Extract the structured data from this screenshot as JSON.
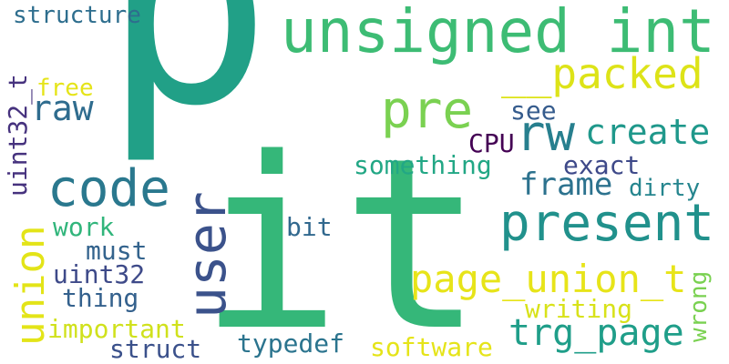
{
  "words": {
    "p": {
      "text": "p",
      "color": "#21a087"
    },
    "it": {
      "text": "it",
      "color": "#35b779"
    },
    "unsigned_int": {
      "text": "unsigned int",
      "color": "#3dbc74"
    },
    "packed": {
      "text": "__packed",
      "color": "#dde318"
    },
    "pre": {
      "text": "pre",
      "color": "#7ad151"
    },
    "rw": {
      "text": "rw",
      "color": "#277f8e"
    },
    "create": {
      "text": "create",
      "color": "#1f988b"
    },
    "code": {
      "text": "code",
      "color": "#2a788e"
    },
    "user": {
      "text": "user",
      "color": "#3b528b"
    },
    "present": {
      "text": "present",
      "color": "#21918c"
    },
    "union": {
      "text": "union",
      "color": "#e3e418"
    },
    "page_union_t": {
      "text": "page_union_t",
      "color": "#e7e419"
    },
    "trg_page": {
      "text": "trg_page",
      "color": "#1f9e89"
    },
    "frame": {
      "text": "frame",
      "color": "#2c728e"
    },
    "structure": {
      "text": "structure",
      "color": "#2e6e8e"
    },
    "uint32_t": {
      "text": "uint32_t",
      "color": "#46327e"
    },
    "free": {
      "text": "free",
      "color": "#e5e419"
    },
    "raw": {
      "text": "raw",
      "color": "#2f6c8e"
    },
    "see": {
      "text": "see",
      "color": "#365c8d"
    },
    "cpu": {
      "text": "CPU",
      "color": "#440154"
    },
    "something": {
      "text": "something",
      "color": "#22a785"
    },
    "exact": {
      "text": "exact",
      "color": "#3e4989"
    },
    "dirty": {
      "text": "dirty",
      "color": "#25858e"
    },
    "work": {
      "text": "work",
      "color": "#31b57b"
    },
    "must": {
      "text": "must",
      "color": "#33638d"
    },
    "bit": {
      "text": "bit",
      "color": "#31688e"
    },
    "uint32": {
      "text": "uint32",
      "color": "#3e4a89"
    },
    "thing": {
      "text": "thing",
      "color": "#34618d"
    },
    "wrong": {
      "text": "wrong",
      "color": "#7ad151"
    },
    "writing": {
      "text": "writing",
      "color": "#d8e219"
    },
    "important": {
      "text": "important",
      "color": "#d0e11c"
    },
    "struct": {
      "text": "struct",
      "color": "#3b518b"
    },
    "typedef": {
      "text": "typedef",
      "color": "#2b748e"
    },
    "software": {
      "text": "software",
      "color": "#e5e419"
    }
  }
}
